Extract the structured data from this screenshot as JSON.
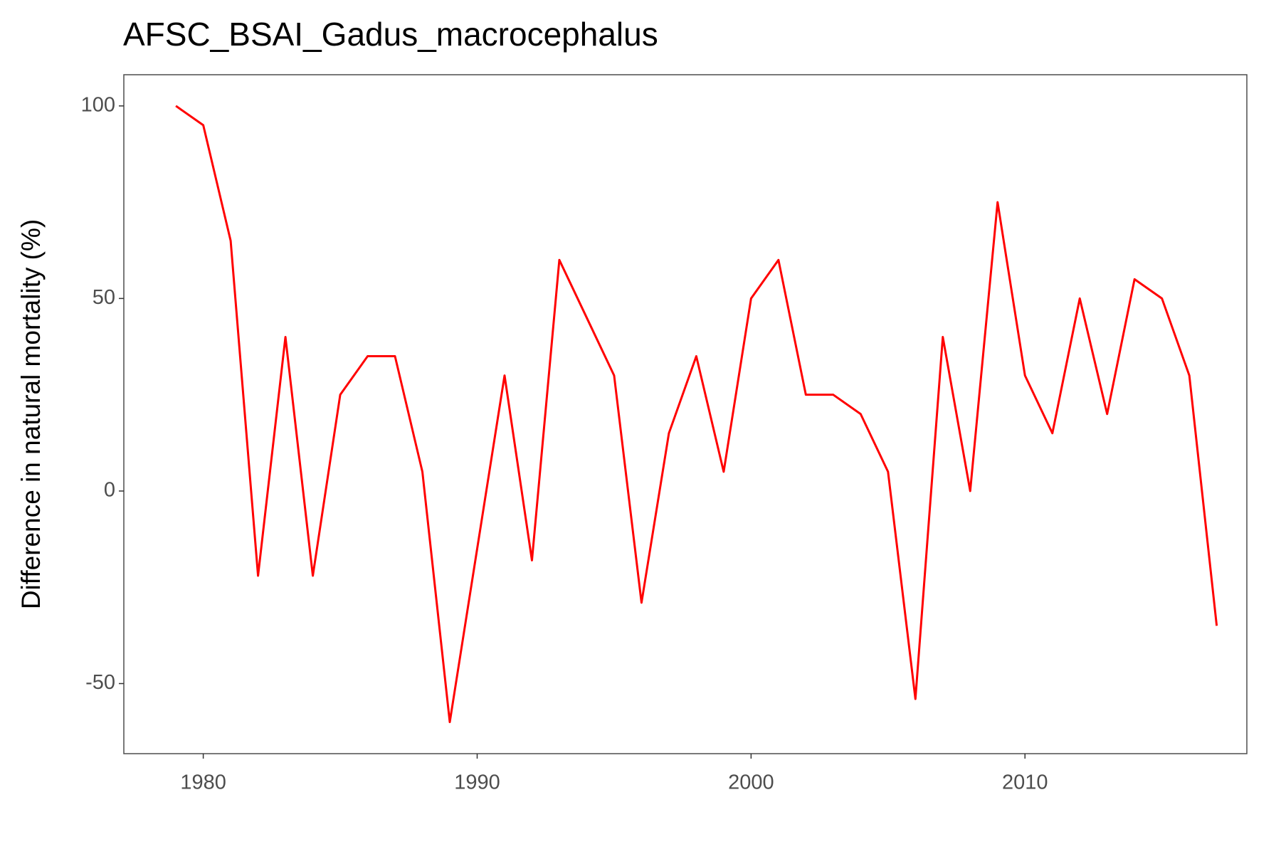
{
  "chart_data": {
    "type": "line",
    "title": "AFSC_BSAI_Gadus_macrocephalus",
    "y_label": "Difference in natural mortality (%)",
    "x": [
      1979,
      1980,
      1981,
      1982,
      1983,
      1984,
      1985,
      1986,
      1987,
      1988,
      1989,
      1990,
      1991,
      1992,
      1993,
      1994,
      1995,
      1996,
      1997,
      1998,
      1999,
      2000,
      2001,
      2002,
      2003,
      2004,
      2005,
      2006,
      2007,
      2008,
      2009,
      2010,
      2011,
      2012,
      2013,
      2014,
      2015,
      2016,
      2017
    ],
    "series": [
      {
        "color": "#ff0000",
        "values": [
          100,
          95,
          65,
          -22,
          40,
          -22,
          25,
          35,
          35,
          5,
          -60,
          -15,
          30,
          -18,
          60,
          45,
          30,
          -29,
          15,
          35,
          5,
          50,
          60,
          25,
          25,
          20,
          5,
          -54,
          40,
          0,
          75,
          30,
          15,
          50,
          20,
          55,
          50,
          30,
          -35
        ]
      }
    ],
    "xlim": [
      1977.1,
      2018.1
    ],
    "xticks": [
      1980,
      1990,
      2000,
      2010
    ],
    "ylim": [
      -68.2,
      108.1
    ],
    "yticks": [
      -50,
      0,
      50,
      100
    ],
    "grid": false
  }
}
